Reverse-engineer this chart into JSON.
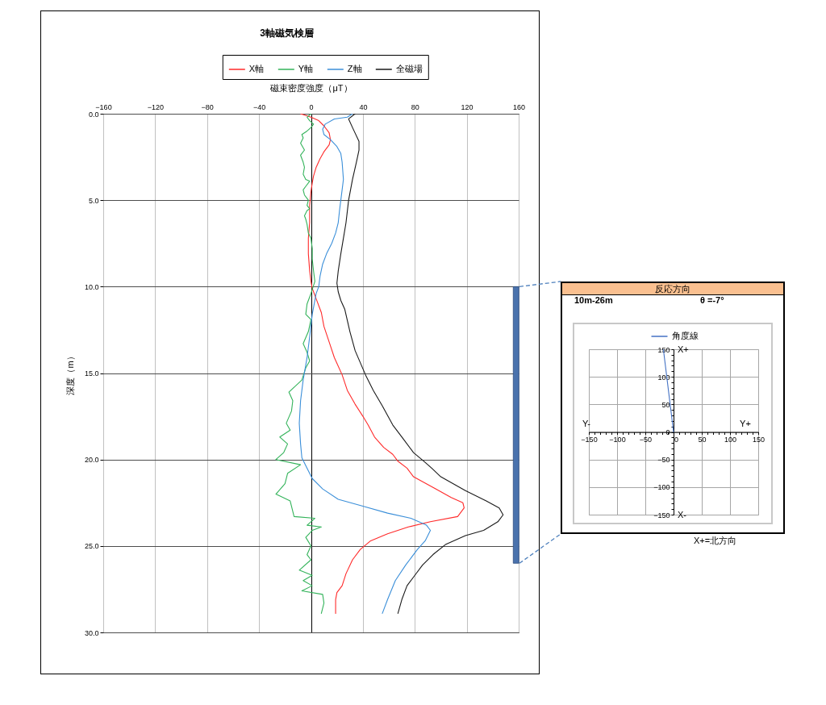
{
  "chart_data": [
    {
      "type": "line",
      "title": "3軸磁気検層",
      "xlabel": "磁束密度強度（μT）",
      "ylabel": "深度（m）",
      "xlim": [
        -160,
        160
      ],
      "xticks": [
        -160,
        -120,
        -80,
        -40,
        0,
        40,
        80,
        120,
        160
      ],
      "ylim": [
        30,
        0
      ],
      "yticks": [
        {
          "value": 0,
          "label": "0.0"
        },
        {
          "value": 5,
          "label": "5.0"
        },
        {
          "value": 10,
          "label": "10.0"
        },
        {
          "value": 15,
          "label": "15.0"
        },
        {
          "value": 20,
          "label": "20.0"
        },
        {
          "value": 25,
          "label": "25.0"
        },
        {
          "value": 30,
          "label": "30.0"
        }
      ],
      "grid": true,
      "legend": "top",
      "series": [
        {
          "name": "X軸",
          "color": "#ff2a2a",
          "x": [
            -8,
            0,
            6,
            10,
            14,
            15,
            14,
            10,
            7,
            4,
            2,
            1,
            0,
            -1,
            -1,
            -2,
            -2,
            -1,
            0,
            1,
            4,
            8,
            10,
            14,
            18,
            24,
            28,
            34,
            40,
            44,
            49,
            56,
            63,
            67,
            74,
            79,
            96,
            108,
            117,
            118,
            113,
            92,
            75,
            59,
            46,
            38,
            32,
            27,
            24,
            20,
            19,
            19
          ],
          "values": [
            0,
            0.2,
            0.4,
            0.7,
            1.1,
            1.5,
            1.8,
            2.2,
            2.6,
            3.1,
            3.6,
            4.0,
            4.5,
            5.3,
            6.3,
            7.2,
            8.1,
            9.1,
            9.7,
            10.1,
            10.7,
            11.5,
            12.3,
            13.2,
            14.1,
            15.1,
            16.0,
            16.8,
            17.5,
            18.0,
            18.7,
            19.3,
            19.7,
            20.1,
            20.5,
            21.0,
            21.7,
            22.2,
            22.5,
            22.8,
            23.3,
            23.6,
            23.9,
            24.3,
            24.7,
            25.2,
            25.8,
            26.6,
            27.3,
            27.7,
            28.1,
            28.9
          ]
        },
        {
          "name": "Y軸",
          "color": "#33b35a",
          "x": [
            0,
            -3,
            -1,
            2,
            0,
            -3,
            -7,
            -6,
            -8,
            -5,
            -8,
            -6,
            -5,
            -6,
            -4,
            -1,
            -4,
            -6,
            -5,
            -2,
            -3,
            -1,
            -3,
            -5,
            -4,
            -3,
            -2,
            0,
            1,
            1,
            2,
            3,
            0,
            -3,
            -4,
            0,
            -2,
            -6,
            -3,
            -1,
            -4,
            -7,
            -17,
            -14,
            -15,
            -19,
            -16,
            -24,
            -18,
            -21,
            -27,
            -8,
            -18,
            -20,
            -27,
            -16,
            -13,
            3,
            -3,
            8,
            1,
            -4,
            0,
            -3,
            0,
            -9,
            1,
            -6,
            1,
            -7,
            9,
            10,
            8
          ],
          "values": [
            0,
            0.2,
            0.4,
            0.6,
            0.8,
            1.0,
            1.2,
            1.4,
            1.7,
            2.1,
            2.4,
            2.8,
            3.1,
            3.5,
            3.8,
            3.9,
            4.2,
            4.4,
            4.7,
            5.0,
            5.3,
            5.5,
            5.6,
            5.9,
            6.1,
            6.4,
            6.9,
            7.2,
            7.8,
            8.4,
            9.1,
            9.7,
            10.4,
            11.0,
            11.6,
            11.9,
            12.6,
            13.3,
            13.8,
            14.3,
            14.7,
            15.4,
            16.1,
            16.6,
            17.2,
            17.9,
            18.3,
            18.7,
            19.1,
            19.6,
            20.0,
            20.3,
            20.8,
            21.4,
            22.0,
            22.4,
            23.3,
            23.4,
            23.8,
            23.9,
            24.1,
            24.5,
            25.0,
            25.5,
            25.8,
            26.4,
            26.7,
            27.0,
            27.3,
            27.6,
            27.8,
            28.3,
            28.9
          ]
        },
        {
          "name": "Z軸",
          "color": "#3b8fd9",
          "x": [
            32,
            28,
            18,
            11,
            9,
            10,
            15,
            20,
            23,
            24,
            25,
            24,
            23,
            22,
            21,
            19,
            16,
            12,
            9,
            7,
            6,
            4,
            1,
            -1,
            -3,
            -6,
            -8,
            -9,
            -8,
            -7,
            -3,
            1,
            9,
            21,
            40,
            59,
            77,
            89,
            92,
            88,
            82,
            73,
            65,
            59,
            55
          ],
          "values": [
            0,
            0.2,
            0.3,
            0.6,
            0.9,
            1.2,
            1.5,
            1.9,
            2.3,
            2.8,
            3.8,
            4.4,
            5.0,
            5.6,
            6.3,
            6.9,
            7.5,
            8.1,
            8.7,
            9.4,
            10.0,
            10.4,
            11.6,
            12.9,
            14.1,
            15.4,
            16.6,
            17.9,
            19.1,
            19.9,
            20.5,
            21.1,
            21.7,
            22.3,
            22.7,
            23.1,
            23.4,
            23.8,
            24.1,
            24.7,
            25.2,
            26.1,
            27.0,
            28.1,
            28.9
          ]
        },
        {
          "name": "全磁場",
          "color": "#1a1a1a",
          "x": [
            34,
            29,
            32,
            37,
            37,
            35,
            32,
            29,
            27,
            25,
            23,
            21,
            20,
            21,
            23,
            26,
            30,
            34,
            38,
            42,
            48,
            55,
            63,
            71,
            79,
            87,
            93,
            100,
            119,
            135,
            145,
            148,
            144,
            133,
            119,
            104,
            94,
            86,
            80,
            74,
            70,
            67
          ],
          "values": [
            0,
            0.3,
            0.8,
            1.6,
            2.1,
            2.8,
            3.8,
            5.0,
            6.3,
            7.2,
            8.1,
            9.1,
            9.8,
            10.3,
            10.8,
            11.3,
            12.6,
            13.7,
            14.4,
            15.1,
            16.0,
            16.9,
            18.0,
            18.8,
            19.6,
            20.1,
            20.5,
            21.0,
            21.8,
            22.4,
            22.8,
            23.2,
            23.6,
            24.1,
            24.4,
            24.9,
            25.5,
            26.1,
            26.7,
            27.3,
            28.1,
            28.9
          ]
        },
        {
          "type": "bar",
          "color": "#4a72ad",
          "x": [
            158
          ],
          "base": [
            10
          ],
          "values": [
            16
          ]
        }
      ]
    },
    {
      "type": "line",
      "title": "反応方向",
      "annotations": [
        "10m-26m",
        "θ =-7°",
        "Y-",
        "Y+",
        "X+",
        "X-",
        "X+=北方向"
      ],
      "xlim": [
        -150,
        150
      ],
      "xticks": [
        -150,
        {
          "value": -140,
          "label": null
        },
        {
          "value": -130,
          "label": null
        },
        {
          "value": -120,
          "label": null
        },
        {
          "value": -110,
          "label": null
        },
        -100,
        {
          "value": -90,
          "label": null
        },
        {
          "value": -80,
          "label": null
        },
        {
          "value": -70,
          "label": null
        },
        {
          "value": -60,
          "label": null
        },
        -50,
        {
          "value": -40,
          "label": null
        },
        {
          "value": -30,
          "label": null
        },
        {
          "value": -20,
          "label": null
        },
        {
          "value": -10,
          "label": null
        },
        0,
        {
          "value": 10,
          "label": null
        },
        {
          "value": 20,
          "label": null
        },
        {
          "value": 30,
          "label": null
        },
        {
          "value": 40,
          "label": null
        },
        50,
        {
          "value": 60,
          "label": null
        },
        {
          "value": 70,
          "label": null
        },
        {
          "value": 80,
          "label": null
        },
        {
          "value": 90,
          "label": null
        },
        100,
        {
          "value": 110,
          "label": null
        },
        {
          "value": 120,
          "label": null
        },
        {
          "value": 130,
          "label": null
        },
        {
          "value": 140,
          "label": null
        },
        150
      ],
      "ylim": [
        -150,
        150
      ],
      "yticks": [
        -150,
        {
          "value": -140,
          "label": null
        },
        {
          "value": -130,
          "label": null
        },
        {
          "value": -120,
          "label": null
        },
        {
          "value": -110,
          "label": null
        },
        -100,
        {
          "value": -90,
          "label": null
        },
        {
          "value": -80,
          "label": null
        },
        {
          "value": -70,
          "label": null
        },
        {
          "value": -60,
          "label": null
        },
        -50,
        {
          "value": -40,
          "label": null
        },
        {
          "value": -30,
          "label": null
        },
        {
          "value": -20,
          "label": null
        },
        {
          "value": -10,
          "label": null
        },
        0,
        {
          "value": 10,
          "label": null
        },
        {
          "value": 20,
          "label": null
        },
        {
          "value": 30,
          "label": null
        },
        {
          "value": 40,
          "label": null
        },
        50,
        {
          "value": 60,
          "label": null
        },
        {
          "value": 70,
          "label": null
        },
        {
          "value": 80,
          "label": null
        },
        {
          "value": 90,
          "label": null
        },
        100,
        {
          "value": 110,
          "label": null
        },
        {
          "value": 120,
          "label": null
        },
        {
          "value": 130,
          "label": null
        },
        {
          "value": 140,
          "label": null
        },
        150
      ],
      "grid": true,
      "legend": "top",
      "series": [
        {
          "name": "角度線",
          "color": "#4472c4",
          "x": [
            0,
            -18
          ],
          "values": [
            0,
            150
          ]
        }
      ]
    }
  ]
}
